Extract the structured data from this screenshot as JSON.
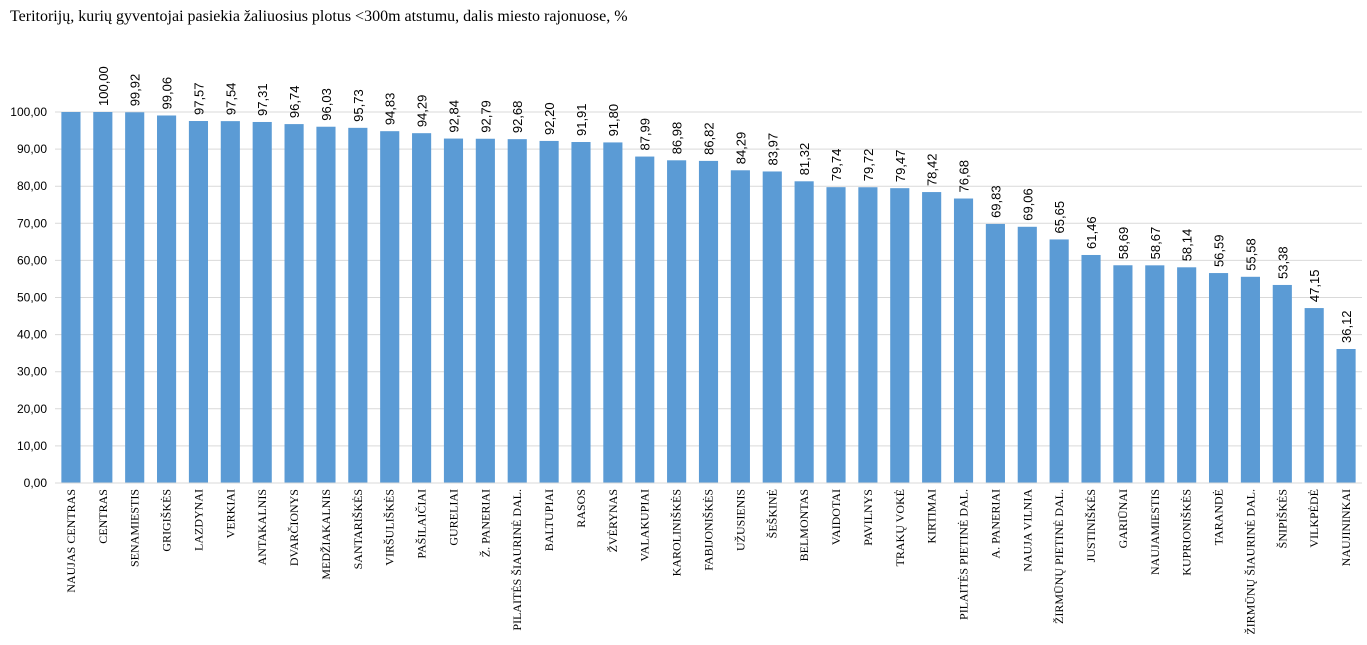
{
  "chart_data": {
    "type": "bar",
    "title": "Teritorijų, kurių gyventojai pasiekia žaliuosius plotus <300m atstumu, dalis miesto rajonuose, %",
    "xlabel": "",
    "ylabel": "",
    "ylim": [
      0,
      100
    ],
    "yticks": [
      "0,00",
      "10,00",
      "20,00",
      "30,00",
      "40,00",
      "50,00",
      "60,00",
      "70,00",
      "80,00",
      "90,00",
      "100,00"
    ],
    "grid": true,
    "legend": "none",
    "bar_color": "#5b9bd5",
    "categories": [
      "NAUJAS CENTRAS",
      "CENTRAS",
      "SENAMIESTIS",
      "GRIGIŠKĖS",
      "LAZDYNAI",
      "VERKIAI",
      "ANTAKALNIS",
      "DVARČIONYS",
      "MEDŽIAKALNIS",
      "SANTARIŠKĖS",
      "VIRŠULIŠKĖS",
      "PAŠILAIČIAI",
      "GURELIAI",
      "Ž. PANERIAI",
      "PILAITĖS ŠIAURINĖ DAL.",
      "BALTUPIAI",
      "RASOS",
      "ŽVĖRYNAS",
      "VALAKUPIAI",
      "KAROLINIŠKĖS",
      "FABIJONIŠKĖS",
      "UŽUSIENIS",
      "ŠEŠKINĖ",
      "BELMONTAS",
      "VAIDOTAI",
      "PAVILNYS",
      "TRAKŲ VOKĖ",
      "KIRTIMAI",
      "PILAITĖS PIETINĖ DAL.",
      "A. PANERIAI",
      "NAUJA VILNIA",
      "ŽIRMŪNŲ PIETINĖ DAL.",
      "JUSTINIŠKĖS",
      "GARIŪNAI",
      "NAUJAMIESTIS",
      "KUPRIONIŠKĖS",
      "TARANDĖ",
      "ŽIRMŪNŲ ŠIAURINĖ DAL.",
      "ŠNIPIŠKĖS",
      "VILKPĖDĖ",
      "NAUJININKAI"
    ],
    "values": [
      100.0,
      100.0,
      99.92,
      99.06,
      97.57,
      97.54,
      97.31,
      96.74,
      96.03,
      95.73,
      94.83,
      94.29,
      92.84,
      92.79,
      92.68,
      92.2,
      91.91,
      91.8,
      87.99,
      86.98,
      86.82,
      84.29,
      83.97,
      81.32,
      79.74,
      79.72,
      79.47,
      78.42,
      76.68,
      69.83,
      69.06,
      65.65,
      61.46,
      58.69,
      58.67,
      58.14,
      56.59,
      55.58,
      53.38,
      47.15,
      36.12
    ],
    "data_labels": [
      "",
      "100,00",
      "99,92",
      "99,06",
      "97,57",
      "97,54",
      "97,31",
      "96,74",
      "96,03",
      "95,73",
      "94,83",
      "94,29",
      "92,84",
      "92,79",
      "92,68",
      "92,20",
      "91,91",
      "91,80",
      "87,99",
      "86,98",
      "86,82",
      "84,29",
      "83,97",
      "81,32",
      "79,74",
      "79,72",
      "79,47",
      "78,42",
      "76,68",
      "69,83",
      "69,06",
      "65,65",
      "61,46",
      "58,69",
      "58,67",
      "58,14",
      "56,59",
      "55,58",
      "53,38",
      "47,15",
      "36,12"
    ]
  }
}
